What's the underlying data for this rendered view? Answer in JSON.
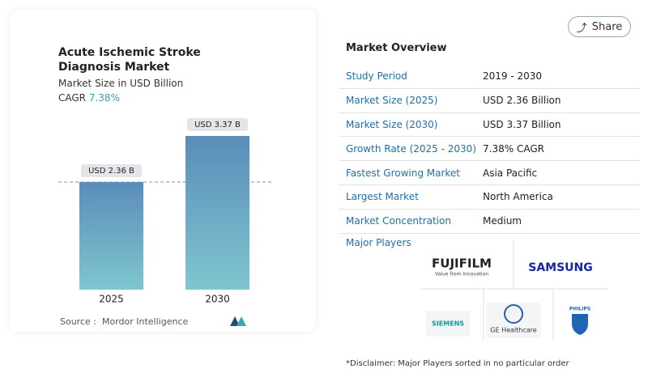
{
  "chart_data": {
    "type": "bar",
    "title": "Acute Ischemic Stroke Diagnosis Market",
    "subtitle": "Market Size in USD Billion",
    "cagr_label": "CAGR",
    "cagr_value": "7.38%",
    "categories": [
      "2025",
      "2030"
    ],
    "values": [
      2.36,
      3.37
    ],
    "value_labels": [
      "USD 2.36 B",
      "USD 3.37 B"
    ],
    "source": "Source :  Mordor Intelligence"
  },
  "share_button": "Share",
  "overview": {
    "title": "Market Overview",
    "rows": [
      [
        "Study Period",
        "2019 - 2030"
      ],
      [
        "Market Size (2025)",
        "USD 2.36 Billion"
      ],
      [
        "Market Size (2030)",
        "USD 3.37 Billion"
      ],
      [
        "Growth Rate (2025 - 2030)",
        "7.38% CAGR"
      ],
      [
        "Fastest Growing Market",
        "Asia Pacific"
      ],
      [
        "Largest Market",
        "North America"
      ],
      [
        "Market Concentration",
        "Medium"
      ]
    ],
    "major_players_title": "Major Players"
  },
  "major_players": [
    "FUJIFILM",
    "Value from Innovation",
    "SAMSUNG",
    "SIEMENS",
    "GE Healthcare",
    "PHILIPS"
  ],
  "disclaimer": "*Disclaimer: Major Players sorted in no particular order"
}
